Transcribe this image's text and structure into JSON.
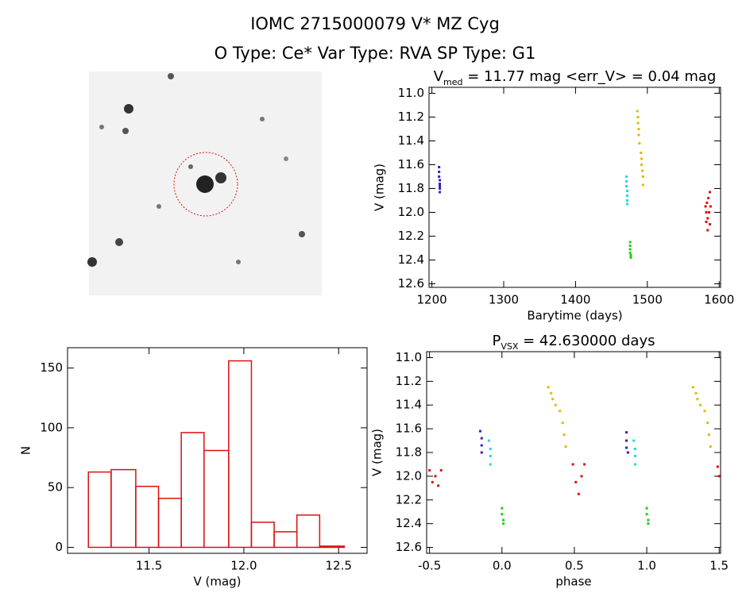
{
  "header": {
    "title": "IOMC 2715000079   V* MZ Cyg",
    "subtitle": "O Type: Ce*  Var Type: RVA  SP Type: G1"
  },
  "chart_data": [
    {
      "type": "scatter",
      "title": [
        "V",
        "med",
        " = 11.77 mag <err_V> = 0.04 mag"
      ],
      "x_label": "Barytime (days)",
      "y_label": "V (mag)",
      "xlim": [
        1196,
        1602
      ],
      "ylim": [
        12.63,
        10.95
      ],
      "xticks": [
        1200,
        1300,
        1400,
        1500,
        1600
      ],
      "yticks": [
        {
          "value": 11.0,
          "label": "11.0"
        },
        11.2,
        11.4,
        11.6,
        11.8,
        {
          "value": 12.0,
          "label": "12.0"
        },
        12.2,
        12.4,
        12.6
      ],
      "series": [
        {
          "color": "#3a1fbf",
          "x": [
            1210,
            1210,
            1210,
            1211,
            1211,
            1211,
            1211,
            1211
          ],
          "y": [
            11.62,
            11.66,
            11.7,
            11.73,
            11.76,
            11.78,
            11.8,
            11.83
          ]
        },
        {
          "color": "#22d8e8",
          "x": [
            1471,
            1471,
            1471,
            1472,
            1472,
            1472,
            1472
          ],
          "y": [
            11.7,
            11.74,
            11.78,
            11.82,
            11.86,
            11.9,
            11.93
          ]
        },
        {
          "color": "#22cc22",
          "x": [
            1476,
            1476,
            1476,
            1476,
            1477,
            1477
          ],
          "y": [
            12.25,
            12.28,
            12.31,
            12.34,
            12.36,
            12.38
          ]
        },
        {
          "color": "#e8b800",
          "x": [
            1486,
            1487,
            1487,
            1488,
            1488,
            1489,
            1491,
            1492,
            1492,
            1493,
            1494,
            1494
          ],
          "y": [
            11.15,
            11.2,
            11.25,
            11.3,
            11.35,
            11.42,
            11.5,
            11.55,
            11.6,
            11.65,
            11.7,
            11.77
          ]
        },
        {
          "color": "#dd1111",
          "x": [
            1581,
            1582,
            1582,
            1583,
            1584,
            1584,
            1585,
            1586,
            1587,
            1587,
            1588
          ],
          "y": [
            11.95,
            12.0,
            12.08,
            11.92,
            12.05,
            12.15,
            11.88,
            12.0,
            11.83,
            12.1,
            11.95
          ]
        }
      ]
    },
    {
      "type": "histogram",
      "x_label": "V (mag)",
      "y_label": "N",
      "color": "#dd1111",
      "xlim": [
        11.07,
        12.65
      ],
      "ylim": [
        -5,
        167
      ],
      "xticks": [
        11.5,
        {
          "value": 12.0,
          "label": "12.0"
        },
        12.5
      ],
      "yticks": [
        0,
        50,
        100,
        150
      ],
      "bins": [
        11.18,
        11.3,
        11.43,
        11.55,
        11.67,
        11.79,
        11.92,
        12.04,
        12.16,
        12.28,
        12.4,
        12.53
      ],
      "values": [
        63,
        65,
        51,
        41,
        96,
        81,
        156,
        21,
        13,
        27,
        1
      ]
    },
    {
      "type": "scatter",
      "title": [
        "P",
        "VSX",
        " = 42.630000 days"
      ],
      "x_label": "phase",
      "y_label": "V (mag)",
      "xlim": [
        -0.52,
        1.51
      ],
      "ylim": [
        12.65,
        10.95
      ],
      "xticks": [
        -0.5,
        {
          "value": 0.0,
          "label": "0.0"
        },
        0.5,
        {
          "value": 1.0,
          "label": "1.0"
        },
        1.5
      ],
      "yticks": [
        {
          "value": 11.0,
          "label": "11.0"
        },
        11.2,
        11.4,
        11.6,
        11.8,
        {
          "value": 12.0,
          "label": "12.0"
        },
        12.2,
        12.4,
        12.6
      ],
      "series": [
        {
          "color": "#3a1fbf",
          "x": [
            -0.15,
            -0.14,
            -0.14,
            -0.14,
            0.86,
            0.86,
            0.86,
            0.87
          ],
          "y": [
            11.62,
            11.68,
            11.74,
            11.8,
            11.63,
            11.7,
            11.76,
            11.8
          ]
        },
        {
          "color": "#22d8e8",
          "x": [
            -0.09,
            -0.08,
            -0.08,
            -0.08,
            0.91,
            0.92,
            0.92,
            0.92
          ],
          "y": [
            11.7,
            11.77,
            11.83,
            11.9,
            11.7,
            11.77,
            11.83,
            11.9
          ]
        },
        {
          "color": "#22cc22",
          "x": [
            0,
            0,
            0.01,
            0.01,
            1.0,
            1.0,
            1.01,
            1.01
          ],
          "y": [
            12.27,
            12.32,
            12.37,
            12.4,
            12.27,
            12.32,
            12.37,
            12.4
          ]
        },
        {
          "color": "#e8b800",
          "x": [
            0.32,
            0.34,
            0.35,
            0.37,
            0.4,
            0.42,
            0.43,
            0.44,
            1.32,
            1.34,
            1.35,
            1.37,
            1.4,
            1.42,
            1.43,
            1.44
          ],
          "y": [
            11.25,
            11.3,
            11.35,
            11.4,
            11.45,
            11.55,
            11.65,
            11.75,
            11.25,
            11.3,
            11.35,
            11.4,
            11.45,
            11.55,
            11.65,
            11.75
          ]
        },
        {
          "color": "#dd1111",
          "x": [
            -0.5,
            -0.48,
            -0.46,
            -0.44,
            -0.42,
            0.49,
            0.51,
            0.53,
            0.55,
            0.57,
            1.49,
            1.5
          ],
          "y": [
            11.95,
            12.05,
            12.0,
            12.08,
            11.95,
            11.9,
            12.05,
            12.15,
            12.0,
            11.9,
            11.92,
            12.0
          ]
        }
      ]
    }
  ]
}
